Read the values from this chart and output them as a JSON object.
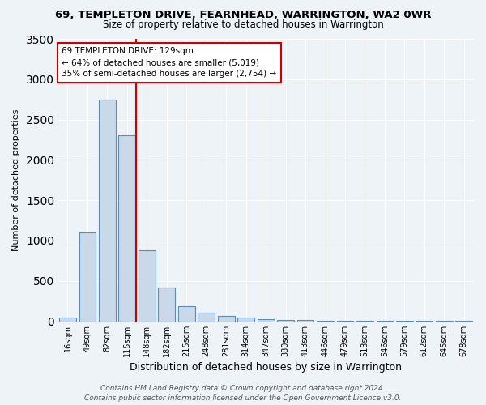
{
  "title1": "69, TEMPLETON DRIVE, FEARNHEAD, WARRINGTON, WA2 0WR",
  "title2": "Size of property relative to detached houses in Warrington",
  "xlabel": "Distribution of detached houses by size in Warrington",
  "ylabel": "Number of detached properties",
  "categories": [
    "16sqm",
    "49sqm",
    "82sqm",
    "115sqm",
    "148sqm",
    "182sqm",
    "215sqm",
    "248sqm",
    "281sqm",
    "314sqm",
    "347sqm",
    "380sqm",
    "413sqm",
    "446sqm",
    "479sqm",
    "513sqm",
    "546sqm",
    "579sqm",
    "612sqm",
    "645sqm",
    "678sqm"
  ],
  "values": [
    50,
    1100,
    2750,
    2300,
    880,
    420,
    185,
    105,
    65,
    45,
    28,
    18,
    12,
    8,
    5,
    4,
    3,
    2,
    2,
    1,
    1
  ],
  "bar_color": "#c9d9ea",
  "bar_edge_color": "#5b8db8",
  "vline_x": 3.45,
  "annotation_text_line1": "69 TEMPLETON DRIVE: 129sqm",
  "annotation_text_line2": "← 64% of detached houses are smaller (5,019)",
  "annotation_text_line3": "35% of semi-detached houses are larger (2,754) →",
  "annotation_box_facecolor": "#ffffff",
  "annotation_box_edgecolor": "#cc0000",
  "vline_color": "#cc0000",
  "background_color": "#eef3f8",
  "grid_color": "#ffffff",
  "footer_line1": "Contains HM Land Registry data © Crown copyright and database right 2024.",
  "footer_line2": "Contains public sector information licensed under the Open Government Licence v3.0.",
  "ylim": [
    0,
    3500
  ],
  "yticks": [
    0,
    500,
    1000,
    1500,
    2000,
    2500,
    3000,
    3500
  ],
  "title1_fontsize": 9.5,
  "title2_fontsize": 8.5,
  "xlabel_fontsize": 9,
  "ylabel_fontsize": 8,
  "tick_fontsize": 7,
  "annotation_fontsize": 7.5,
  "footer_fontsize": 6.5
}
